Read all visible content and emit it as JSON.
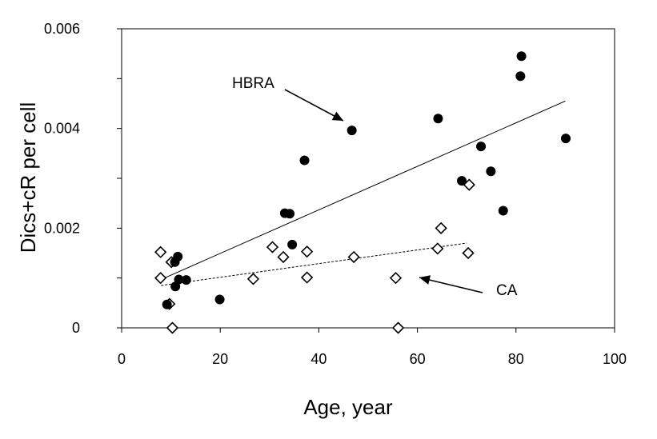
{
  "chart_data": {
    "type": "scatter",
    "title": "",
    "xlabel": "Age, year",
    "ylabel": "Dics+cR per cell",
    "xlim": [
      0,
      100
    ],
    "ylim": [
      0,
      0.006
    ],
    "xticks": [
      0,
      20,
      40,
      60,
      80,
      100
    ],
    "yticks": [
      0,
      0.002,
      0.004,
      0.006
    ],
    "xtick_labels": [
      "0",
      "20",
      "40",
      "60",
      "80",
      "100"
    ],
    "ytick_labels": [
      "0",
      "0.002",
      "0.004",
      "0.006"
    ],
    "grid": false,
    "legend": "none",
    "series": [
      {
        "name": "HBRA",
        "marker": "filled-circle",
        "color": "#000000",
        "points": [
          {
            "x": 9.2,
            "y": 0.00047
          },
          {
            "x": 10.9,
            "y": 0.00083
          },
          {
            "x": 10.8,
            "y": 0.00132
          },
          {
            "x": 11.4,
            "y": 0.00143
          },
          {
            "x": 11.6,
            "y": 0.00097
          },
          {
            "x": 13.1,
            "y": 0.00096
          },
          {
            "x": 19.9,
            "y": 0.00057
          },
          {
            "x": 33.1,
            "y": 0.0023
          },
          {
            "x": 34.1,
            "y": 0.00229
          },
          {
            "x": 34.6,
            "y": 0.00167
          },
          {
            "x": 37.1,
            "y": 0.00336
          },
          {
            "x": 46.7,
            "y": 0.00396
          },
          {
            "x": 64.2,
            "y": 0.0042
          },
          {
            "x": 69.0,
            "y": 0.00295
          },
          {
            "x": 72.9,
            "y": 0.00364
          },
          {
            "x": 74.9,
            "y": 0.00314
          },
          {
            "x": 77.4,
            "y": 0.00235
          },
          {
            "x": 80.9,
            "y": 0.00505
          },
          {
            "x": 81.1,
            "y": 0.00545
          },
          {
            "x": 90.1,
            "y": 0.0038
          }
        ],
        "trendline": {
          "x": [
            8,
            90
          ],
          "y": [
            0.00097,
            0.00455
          ]
        }
      },
      {
        "name": "CA",
        "marker": "open-diamond",
        "color": "#000000",
        "points": [
          {
            "x": 7.9,
            "y": 0.00152
          },
          {
            "x": 7.9,
            "y": 0.001
          },
          {
            "x": 9.7,
            "y": 0.00048
          },
          {
            "x": 10.3,
            "y": 0.0
          },
          {
            "x": 10.1,
            "y": 0.00132
          },
          {
            "x": 26.7,
            "y": 0.00098
          },
          {
            "x": 30.6,
            "y": 0.00162
          },
          {
            "x": 32.8,
            "y": 0.00142
          },
          {
            "x": 37.6,
            "y": 0.00153
          },
          {
            "x": 37.6,
            "y": 0.00101
          },
          {
            "x": 47.1,
            "y": 0.00142
          },
          {
            "x": 55.6,
            "y": 0.001
          },
          {
            "x": 56.1,
            "y": 0.0
          },
          {
            "x": 64.1,
            "y": 0.00159
          },
          {
            "x": 64.8,
            "y": 0.002
          },
          {
            "x": 70.3,
            "y": 0.0015
          },
          {
            "x": 70.5,
            "y": 0.00287
          }
        ],
        "trendline": {
          "x": [
            8,
            70
          ],
          "y": [
            0.00085,
            0.0017
          ]
        }
      }
    ],
    "annotations": [
      {
        "text": "HBRA",
        "series": "HBRA"
      },
      {
        "text": "CA",
        "series": "CA"
      }
    ]
  }
}
